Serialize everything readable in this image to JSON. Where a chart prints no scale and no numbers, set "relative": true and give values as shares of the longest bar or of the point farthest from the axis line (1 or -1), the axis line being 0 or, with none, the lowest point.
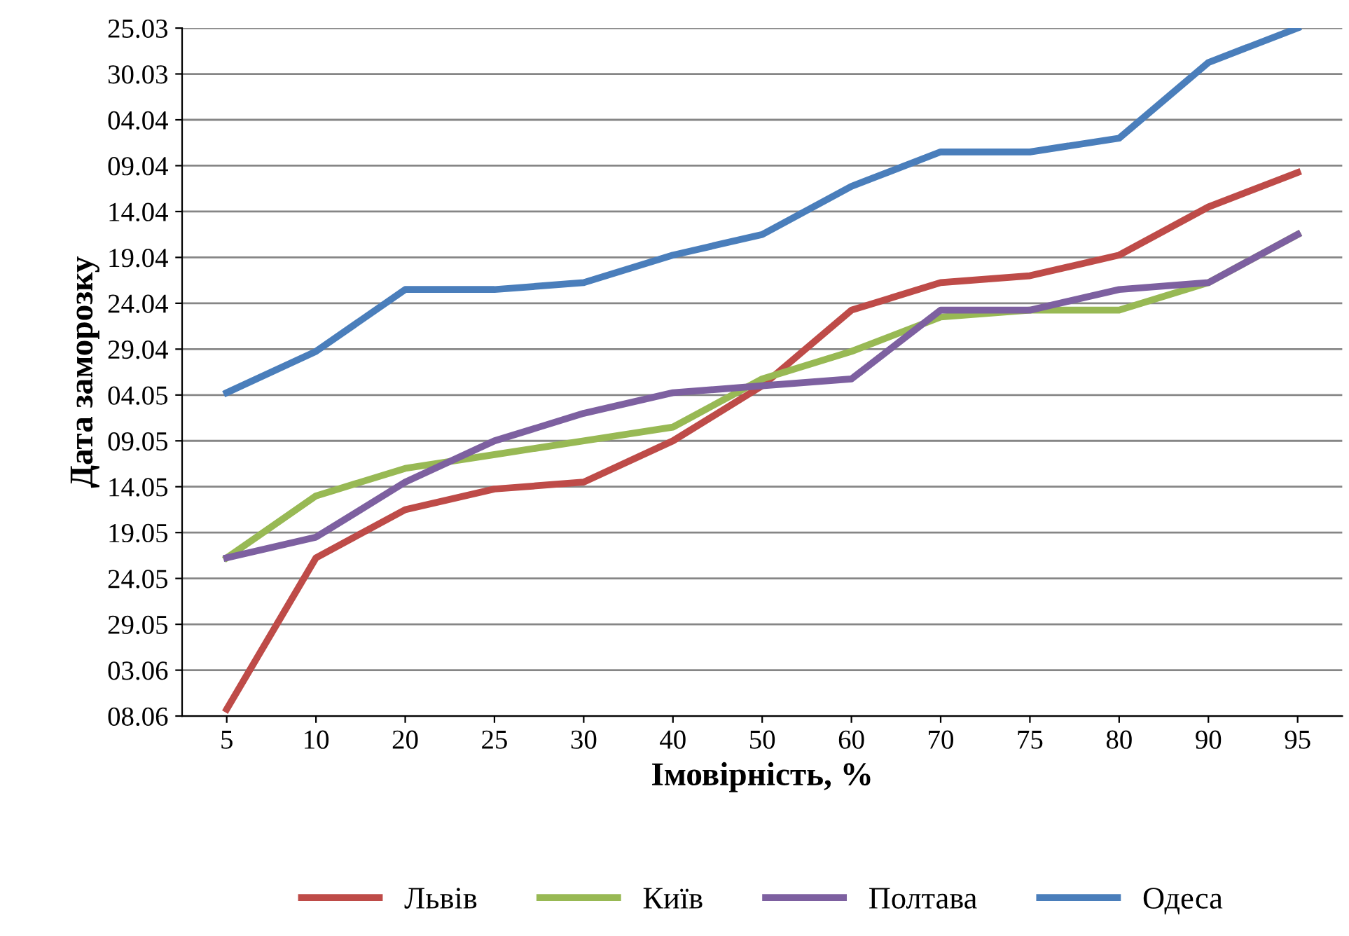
{
  "chart_data": {
    "type": "line",
    "relative": true,
    "xlabel": "Імовірність, %",
    "ylabel": "Дата заморозку",
    "categories": [
      "5",
      "10",
      "20",
      "25",
      "30",
      "40",
      "50",
      "60",
      "70",
      "75",
      "80",
      "90",
      "95"
    ],
    "series": [
      {
        "name": "Львів",
        "color": "#be4b48",
        "values": [
          0.01,
          0.23,
          0.3,
          0.33,
          0.34,
          0.4,
          0.48,
          0.59,
          0.63,
          0.64,
          0.67,
          0.74,
          0.79
        ]
      },
      {
        "name": "Київ",
        "color": "#98b954",
        "values": [
          0.23,
          0.32,
          0.36,
          0.38,
          0.4,
          0.42,
          0.49,
          0.53,
          0.58,
          0.59,
          0.59,
          0.63,
          0.7
        ]
      },
      {
        "name": "Полтава",
        "color": "#7d60a0",
        "values": [
          0.23,
          0.26,
          0.34,
          0.4,
          0.44,
          0.47,
          0.48,
          0.49,
          0.59,
          0.59,
          0.62,
          0.63,
          0.7
        ]
      },
      {
        "name": "Одеса",
        "color": "#4a7ebb",
        "values": [
          0.47,
          0.53,
          0.62,
          0.62,
          0.63,
          0.67,
          0.7,
          0.77,
          0.82,
          0.82,
          0.84,
          0.95,
          1
        ]
      }
    ],
    "annotations": [
      "25.03",
      "30.03",
      "04.04",
      "09.04",
      "14.04",
      "19.04",
      "24.04",
      "29.04",
      "04.05",
      "09.05",
      "14.05",
      "19.05",
      "24.05",
      "29.05",
      "03.06",
      "08.06"
    ],
    "grid": "y",
    "legend": "bottom",
    "marker": "none",
    "line_style": "solid"
  }
}
